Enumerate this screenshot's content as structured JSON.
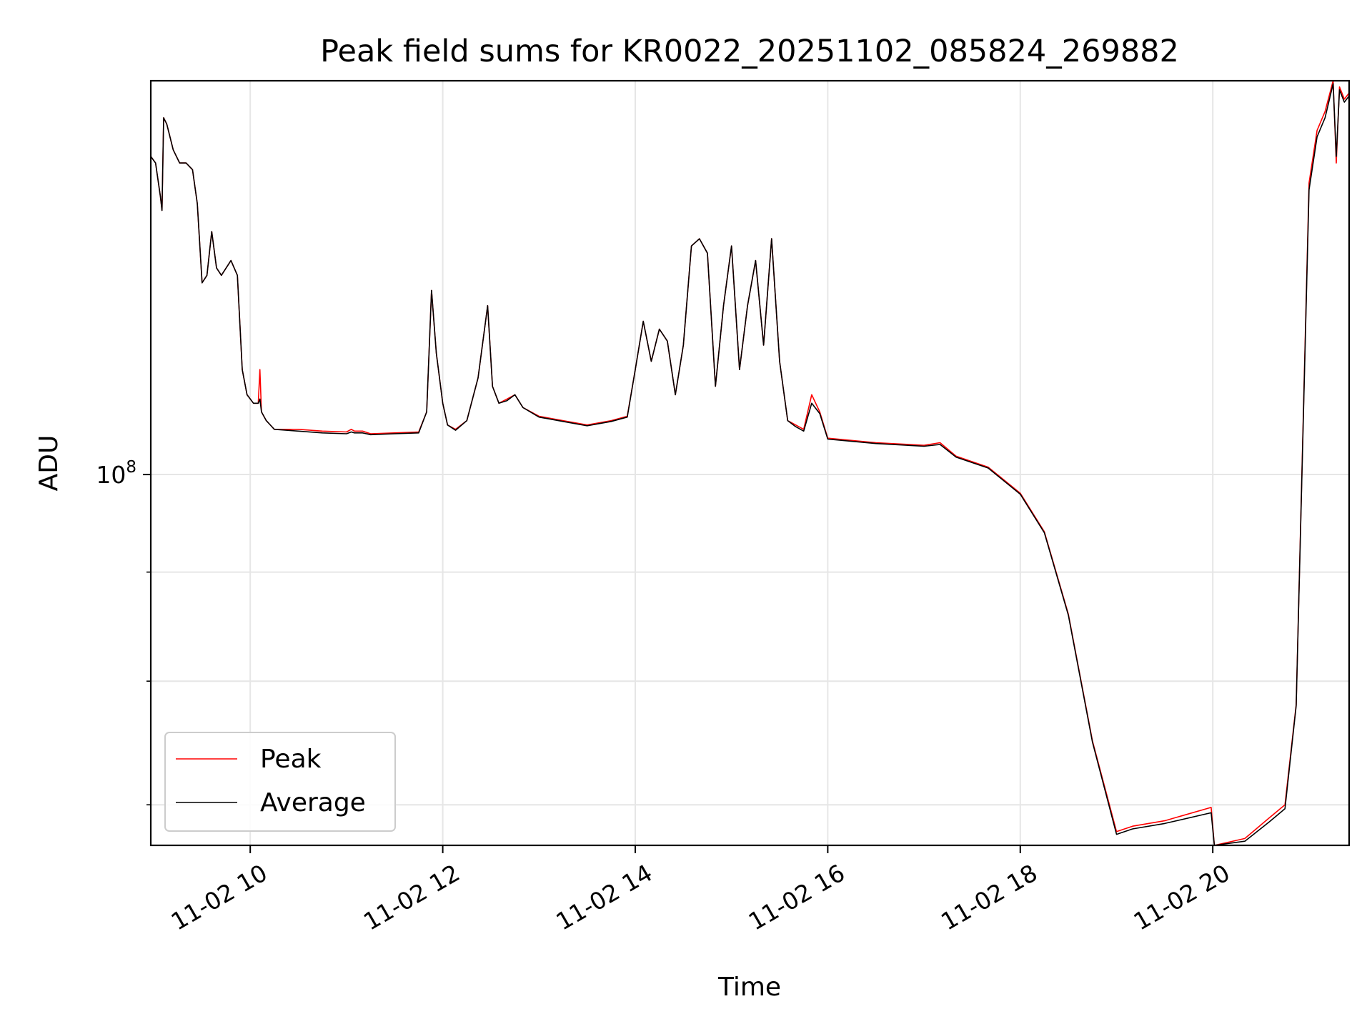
{
  "chart_data": {
    "type": "line",
    "title": "Peak field sums for KR0022_20251102_085824_269882",
    "xlabel": "Time",
    "ylabel": "ADU",
    "x_is_time": true,
    "xlim": [
      "2025-11-02 08:58",
      "2025-11-02 21:25"
    ],
    "yscale": "log",
    "ylim": [
      67000000,
      153000000
    ],
    "x_ticks": [
      {
        "value": "2025-11-02 10:00",
        "label": "11-02 10"
      },
      {
        "value": "2025-11-02 12:00",
        "label": "11-02 12"
      },
      {
        "value": "2025-11-02 14:00",
        "label": "11-02 14"
      },
      {
        "value": "2025-11-02 16:00",
        "label": "11-02 16"
      },
      {
        "value": "2025-11-02 18:00",
        "label": "11-02 18"
      },
      {
        "value": "2025-11-02 20:00",
        "label": "11-02 20"
      }
    ],
    "y_major_ticks": [
      {
        "value": 100000000,
        "label_base": "10",
        "label_exp": "8"
      }
    ],
    "y_minor_ticks": [
      90000000,
      80000000,
      70000000
    ],
    "grid": true,
    "legend": {
      "position": "lower-left",
      "entries": [
        "Peak",
        "Average"
      ]
    },
    "series": [
      {
        "name": "Peak",
        "color": "#ff0000",
        "x": [
          "2025-11-02 08:58",
          "2025-11-02 09:01",
          "2025-11-02 09:04",
          "2025-11-02 09:05",
          "2025-11-02 09:06",
          "2025-11-02 09:08",
          "2025-11-02 09:12",
          "2025-11-02 09:16",
          "2025-11-02 09:20",
          "2025-11-02 09:24",
          "2025-11-02 09:27",
          "2025-11-02 09:30",
          "2025-11-02 09:33",
          "2025-11-02 09:36",
          "2025-11-02 09:39",
          "2025-11-02 09:42",
          "2025-11-02 09:45",
          "2025-11-02 09:48",
          "2025-11-02 09:52",
          "2025-11-02 09:55",
          "2025-11-02 09:58",
          "2025-11-02 10:02",
          "2025-11-02 10:05",
          "2025-11-02 10:06",
          "2025-11-02 10:07",
          "2025-11-02 10:10",
          "2025-11-02 10:15",
          "2025-11-02 10:30",
          "2025-11-02 10:45",
          "2025-11-02 11:00",
          "2025-11-02 11:03",
          "2025-11-02 11:05",
          "2025-11-02 11:10",
          "2025-11-02 11:15",
          "2025-11-02 11:30",
          "2025-11-02 11:45",
          "2025-11-02 11:50",
          "2025-11-02 11:53",
          "2025-11-02 11:56",
          "2025-11-02 12:00",
          "2025-11-02 12:03",
          "2025-11-02 12:08",
          "2025-11-02 12:15",
          "2025-11-02 12:22",
          "2025-11-02 12:28",
          "2025-11-02 12:31",
          "2025-11-02 12:35",
          "2025-11-02 12:40",
          "2025-11-02 12:45",
          "2025-11-02 12:50",
          "2025-11-02 13:00",
          "2025-11-02 13:15",
          "2025-11-02 13:30",
          "2025-11-02 13:45",
          "2025-11-02 13:55",
          "2025-11-02 14:00",
          "2025-11-02 14:05",
          "2025-11-02 14:10",
          "2025-11-02 14:15",
          "2025-11-02 14:20",
          "2025-11-02 14:25",
          "2025-11-02 14:30",
          "2025-11-02 14:35",
          "2025-11-02 14:40",
          "2025-11-02 14:45",
          "2025-11-02 14:50",
          "2025-11-02 14:55",
          "2025-11-02 15:00",
          "2025-11-02 15:05",
          "2025-11-02 15:10",
          "2025-11-02 15:15",
          "2025-11-02 15:20",
          "2025-11-02 15:25",
          "2025-11-02 15:30",
          "2025-11-02 15:35",
          "2025-11-02 15:40",
          "2025-11-02 15:45",
          "2025-11-02 15:50",
          "2025-11-02 15:55",
          "2025-11-02 16:00",
          "2025-11-02 16:30",
          "2025-11-02 17:00",
          "2025-11-02 17:10",
          "2025-11-02 17:20",
          "2025-11-02 17:40",
          "2025-11-02 18:00",
          "2025-11-02 18:15",
          "2025-11-02 18:30",
          "2025-11-02 18:45",
          "2025-11-02 19:00",
          "2025-11-02 19:10",
          "2025-11-02 19:30",
          "2025-11-02 19:59",
          "2025-11-02 20:01",
          "2025-11-02 20:20",
          "2025-11-02 20:35",
          "2025-11-02 20:45",
          "2025-11-02 20:52",
          "2025-11-02 21:00",
          "2025-11-02 21:05",
          "2025-11-02 21:10",
          "2025-11-02 21:15",
          "2025-11-02 21:17",
          "2025-11-02 21:19",
          "2025-11-02 21:22",
          "2025-11-02 21:25"
        ],
        "y": [
          141000000,
          140000000,
          135000000,
          133000000,
          147000000,
          146000000,
          142000000,
          140000000,
          140000000,
          139000000,
          134000000,
          123000000,
          124000000,
          130000000,
          125000000,
          124000000,
          125000000,
          126000000,
          124000000,
          112000000,
          109000000,
          108000000,
          108000000,
          112000000,
          107000000,
          106000000,
          105000000,
          105000000,
          104800000,
          104700000,
          105000000,
          104800000,
          104800000,
          104500000,
          104600000,
          104700000,
          107000000,
          122000000,
          114000000,
          108000000,
          105500000,
          105000000,
          106000000,
          111000000,
          120000000,
          110000000,
          108000000,
          108500000,
          109000000,
          107500000,
          106500000,
          106000000,
          105500000,
          106000000,
          106500000,
          112000000,
          118000000,
          113000000,
          117000000,
          115500000,
          109000000,
          115000000,
          128000000,
          129000000,
          127000000,
          110000000,
          120000000,
          128000000,
          112000000,
          120000000,
          126000000,
          115000000,
          129000000,
          113000000,
          106000000,
          105500000,
          105000000,
          109000000,
          107000000,
          104000000,
          103500000,
          103200000,
          103500000,
          102000000,
          100800000,
          98000000,
          94000000,
          86000000,
          75000000,
          68000000,
          68400000,
          68800000,
          69800000,
          67000000,
          67500000,
          69000000,
          70000000,
          78000000,
          137000000,
          145000000,
          148000000,
          153000000,
          140000000,
          152000000,
          150000000,
          151000000
        ]
      },
      {
        "name": "Average",
        "color": "#000000",
        "x": [
          "2025-11-02 08:58",
          "2025-11-02 09:01",
          "2025-11-02 09:04",
          "2025-11-02 09:05",
          "2025-11-02 09:06",
          "2025-11-02 09:08",
          "2025-11-02 09:12",
          "2025-11-02 09:16",
          "2025-11-02 09:20",
          "2025-11-02 09:24",
          "2025-11-02 09:27",
          "2025-11-02 09:30",
          "2025-11-02 09:33",
          "2025-11-02 09:36",
          "2025-11-02 09:39",
          "2025-11-02 09:42",
          "2025-11-02 09:45",
          "2025-11-02 09:48",
          "2025-11-02 09:52",
          "2025-11-02 09:55",
          "2025-11-02 09:58",
          "2025-11-02 10:02",
          "2025-11-02 10:05",
          "2025-11-02 10:06",
          "2025-11-02 10:07",
          "2025-11-02 10:10",
          "2025-11-02 10:15",
          "2025-11-02 10:30",
          "2025-11-02 10:45",
          "2025-11-02 11:00",
          "2025-11-02 11:03",
          "2025-11-02 11:05",
          "2025-11-02 11:10",
          "2025-11-02 11:15",
          "2025-11-02 11:30",
          "2025-11-02 11:45",
          "2025-11-02 11:50",
          "2025-11-02 11:53",
          "2025-11-02 11:56",
          "2025-11-02 12:00",
          "2025-11-02 12:03",
          "2025-11-02 12:08",
          "2025-11-02 12:15",
          "2025-11-02 12:22",
          "2025-11-02 12:28",
          "2025-11-02 12:31",
          "2025-11-02 12:35",
          "2025-11-02 12:40",
          "2025-11-02 12:45",
          "2025-11-02 12:50",
          "2025-11-02 13:00",
          "2025-11-02 13:15",
          "2025-11-02 13:30",
          "2025-11-02 13:45",
          "2025-11-02 13:55",
          "2025-11-02 14:00",
          "2025-11-02 14:05",
          "2025-11-02 14:10",
          "2025-11-02 14:15",
          "2025-11-02 14:20",
          "2025-11-02 14:25",
          "2025-11-02 14:30",
          "2025-11-02 14:35",
          "2025-11-02 14:40",
          "2025-11-02 14:45",
          "2025-11-02 14:50",
          "2025-11-02 14:55",
          "2025-11-02 15:00",
          "2025-11-02 15:05",
          "2025-11-02 15:10",
          "2025-11-02 15:15",
          "2025-11-02 15:20",
          "2025-11-02 15:25",
          "2025-11-02 15:30",
          "2025-11-02 15:35",
          "2025-11-02 15:40",
          "2025-11-02 15:45",
          "2025-11-02 15:50",
          "2025-11-02 15:55",
          "2025-11-02 16:00",
          "2025-11-02 16:30",
          "2025-11-02 17:00",
          "2025-11-02 17:10",
          "2025-11-02 17:20",
          "2025-11-02 17:40",
          "2025-11-02 18:00",
          "2025-11-02 18:15",
          "2025-11-02 18:30",
          "2025-11-02 18:45",
          "2025-11-02 19:00",
          "2025-11-02 19:10",
          "2025-11-02 19:30",
          "2025-11-02 19:59",
          "2025-11-02 20:01",
          "2025-11-02 20:20",
          "2025-11-02 20:35",
          "2025-11-02 20:45",
          "2025-11-02 20:52",
          "2025-11-02 21:00",
          "2025-11-02 21:05",
          "2025-11-02 21:10",
          "2025-11-02 21:15",
          "2025-11-02 21:17",
          "2025-11-02 21:19",
          "2025-11-02 21:22",
          "2025-11-02 21:25"
        ],
        "y": [
          141000000,
          140000000,
          135000000,
          133000000,
          147000000,
          146000000,
          142000000,
          140000000,
          140000000,
          139000000,
          134000000,
          123000000,
          124000000,
          130000000,
          125000000,
          124000000,
          125000000,
          126000000,
          124000000,
          112000000,
          109000000,
          108000000,
          108000000,
          108500000,
          107000000,
          106000000,
          105000000,
          104800000,
          104600000,
          104500000,
          104700000,
          104600000,
          104600000,
          104400000,
          104500000,
          104600000,
          107000000,
          122000000,
          114000000,
          108000000,
          105500000,
          104900000,
          106000000,
          111000000,
          120000000,
          110000000,
          108000000,
          108300000,
          109000000,
          107500000,
          106400000,
          105900000,
          105400000,
          105900000,
          106400000,
          112000000,
          118000000,
          113000000,
          117000000,
          115500000,
          109000000,
          115000000,
          128000000,
          129000000,
          127000000,
          110000000,
          120000000,
          128000000,
          112000000,
          120000000,
          126000000,
          115000000,
          129000000,
          113000000,
          106000000,
          105300000,
          104800000,
          108000000,
          106800000,
          103900000,
          103400000,
          103100000,
          103300000,
          101900000,
          100700000,
          97900000,
          93900000,
          85900000,
          74900000,
          67800000,
          68200000,
          68600000,
          69400000,
          66900000,
          67300000,
          68700000,
          69700000,
          77900000,
          136000000,
          144000000,
          147000000,
          152500000,
          141000000,
          151500000,
          149500000,
          150500000
        ]
      }
    ]
  }
}
